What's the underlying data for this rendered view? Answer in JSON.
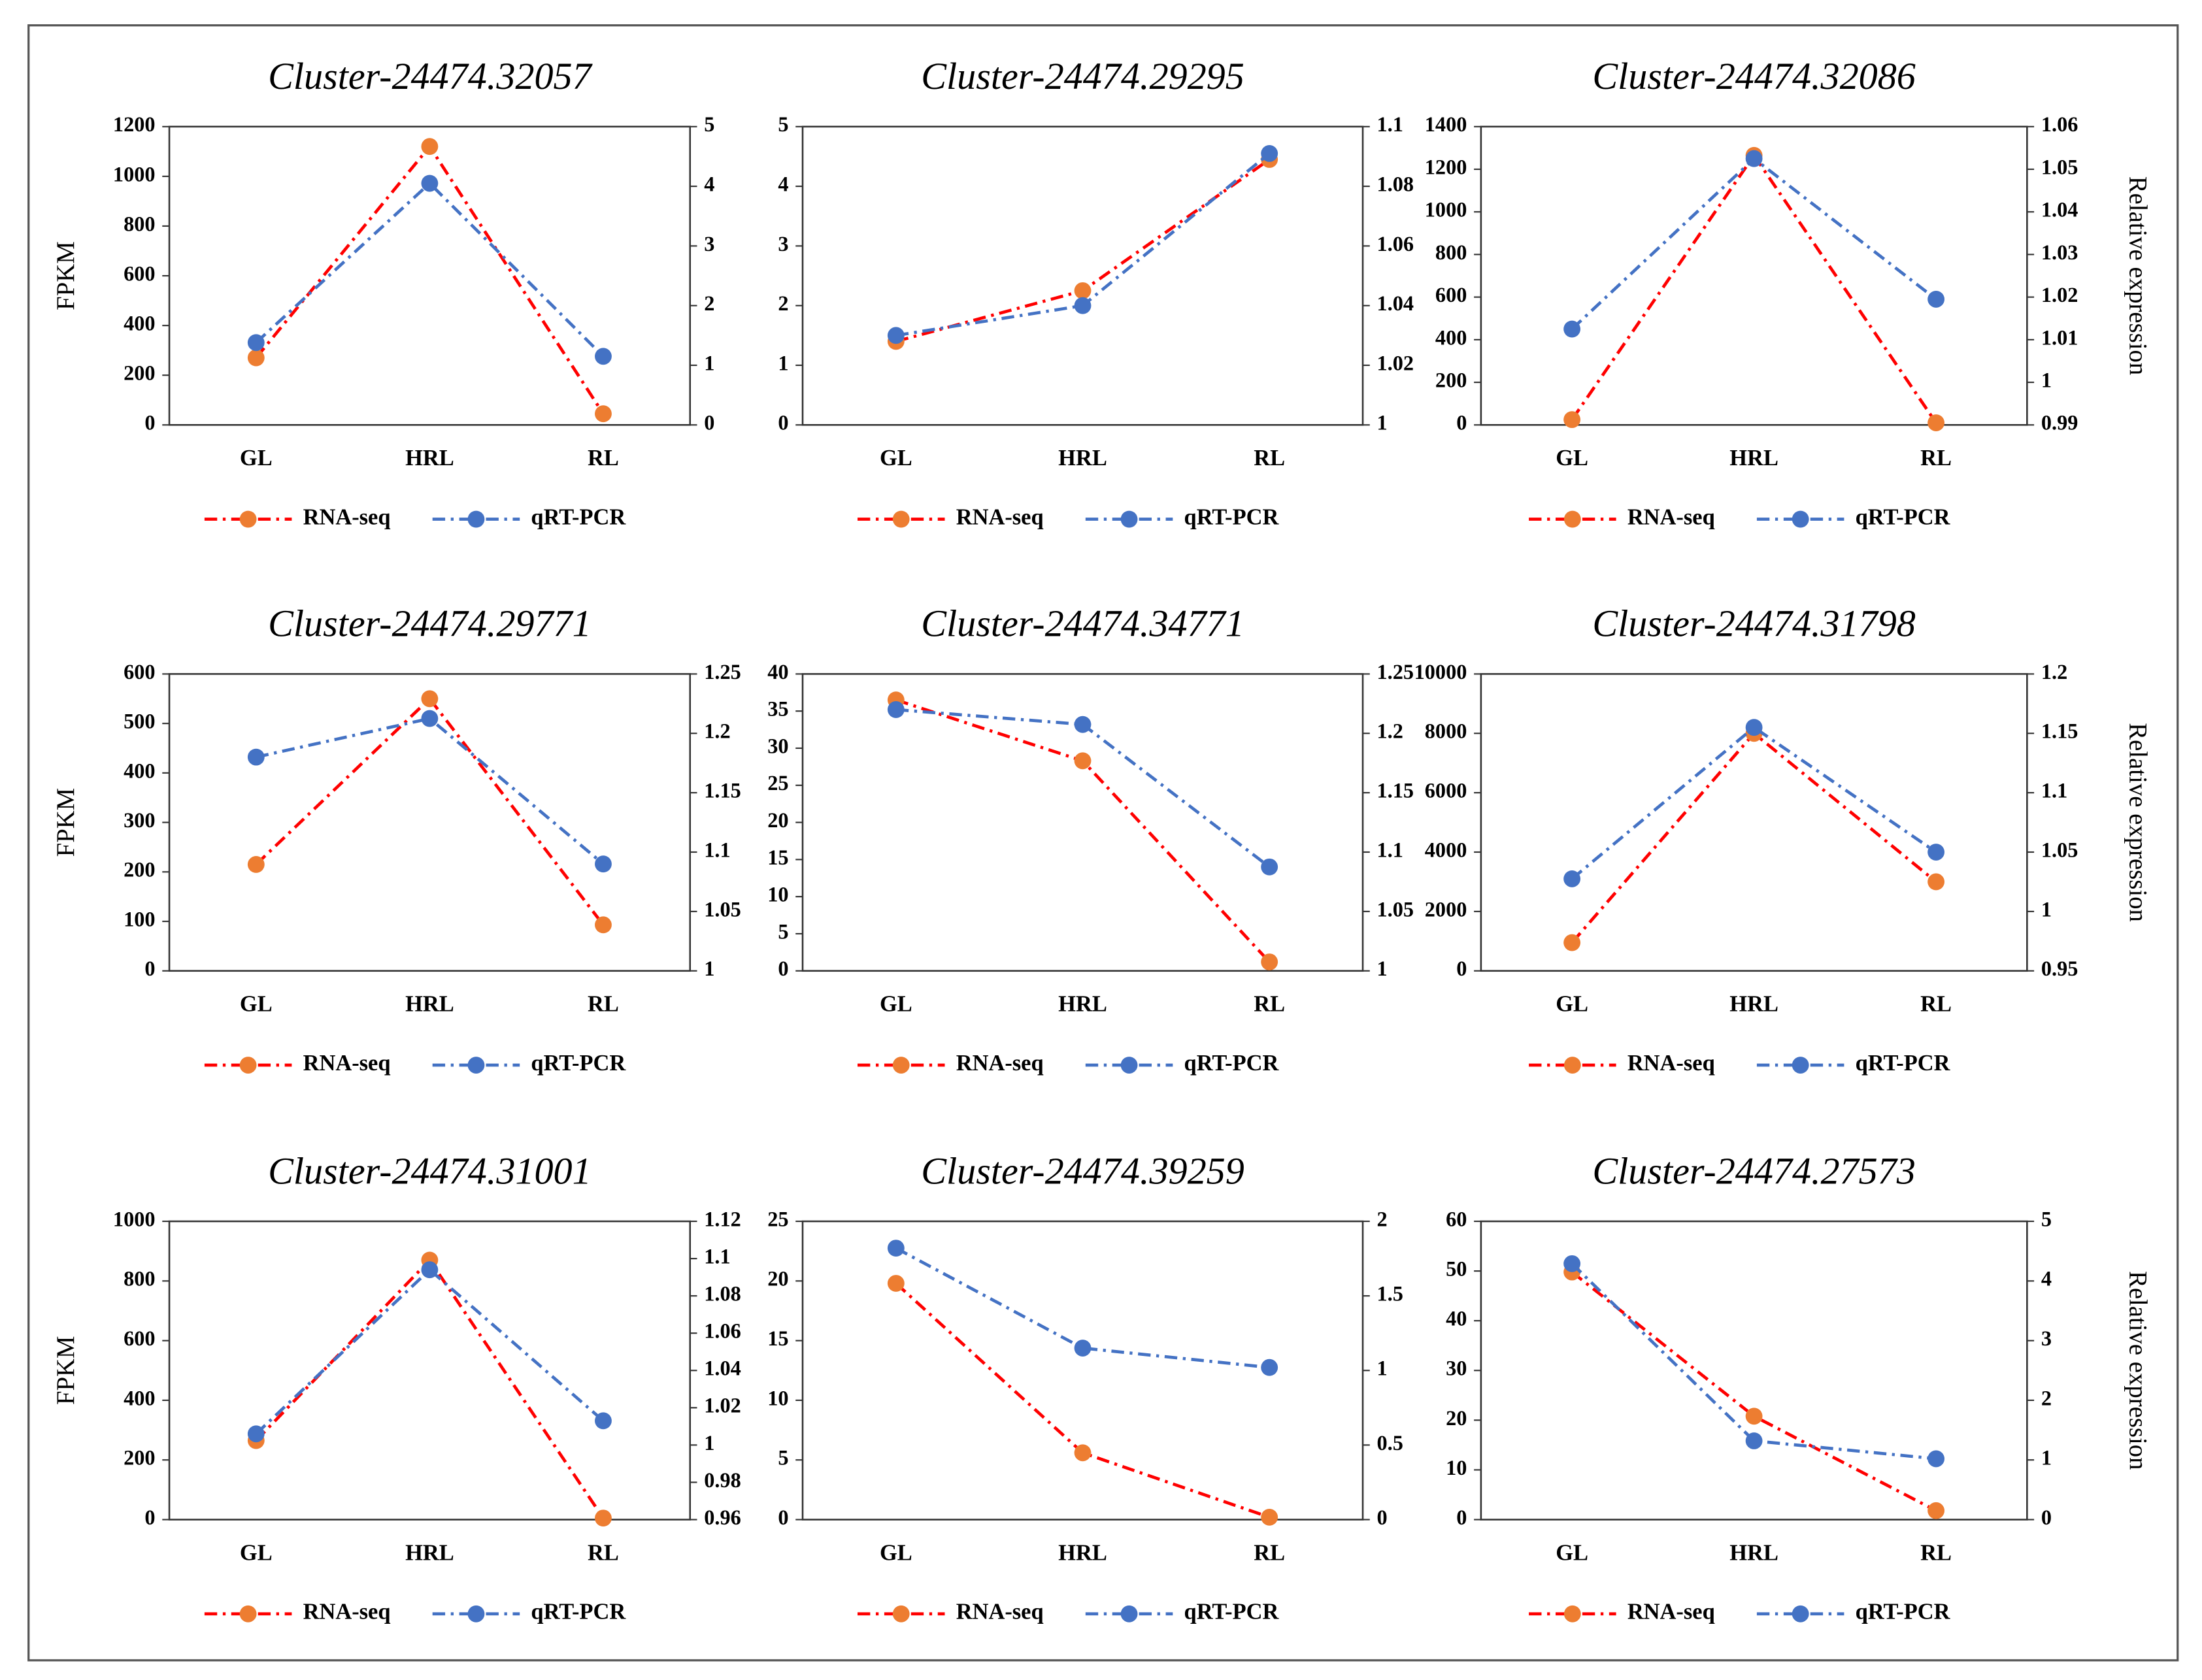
{
  "chart_data": [
    {
      "type": "line",
      "title": "Cluster-24474.32057",
      "categories": [
        "GL",
        "HRL",
        "RL"
      ],
      "ylabel": "FPKM",
      "series": [
        {
          "name": "RNA-seq",
          "color": "#ed7d31",
          "line_color": "#ff0000",
          "values": [
            270,
            1120,
            45
          ]
        },
        {
          "name": "qRT-PCR",
          "color": "#4472c4",
          "line_color": "#4472c4",
          "axis": "y2",
          "values": [
            1.38,
            4.05,
            1.15
          ]
        }
      ],
      "ylim": [
        0,
        1200
      ],
      "yticks": [
        0,
        200,
        400,
        600,
        800,
        1000,
        1200
      ],
      "y2lim": [
        0,
        5
      ],
      "y2ticks": [
        0,
        1,
        2,
        3,
        4,
        5
      ]
    },
    {
      "type": "line",
      "title": "Cluster-24474.29295",
      "categories": [
        "GL",
        "HRL",
        "RL"
      ],
      "series": [
        {
          "name": "RNA-seq",
          "color": "#ed7d31",
          "line_color": "#ff0000",
          "values": [
            1.4,
            2.25,
            4.45
          ]
        },
        {
          "name": "qRT-PCR",
          "color": "#4472c4",
          "line_color": "#4472c4",
          "axis": "y2",
          "values": [
            1.03,
            1.04,
            1.091
          ]
        }
      ],
      "ylim": [
        0,
        5
      ],
      "yticks": [
        0,
        1,
        2,
        3,
        4,
        5
      ],
      "y2lim": [
        1,
        1.1
      ],
      "y2ticks": [
        1,
        1.02,
        1.04,
        1.06,
        1.08,
        1.1
      ]
    },
    {
      "type": "line",
      "title": "Cluster-24474.32086",
      "categories": [
        "GL",
        "HRL",
        "RL"
      ],
      "y2label": "Relative expression",
      "series": [
        {
          "name": "RNA-seq",
          "color": "#ed7d31",
          "line_color": "#ff0000",
          "values": [
            25,
            1265,
            10
          ]
        },
        {
          "name": "qRT-PCR",
          "color": "#4472c4",
          "line_color": "#4472c4",
          "axis": "y2",
          "values": [
            1.0125,
            1.0525,
            1.0195
          ]
        }
      ],
      "ylim": [
        0,
        1400
      ],
      "yticks": [
        0,
        200,
        400,
        600,
        800,
        1000,
        1200,
        1400
      ],
      "y2lim": [
        0.99,
        1.06
      ],
      "y2ticks": [
        0.99,
        1,
        1.01,
        1.02,
        1.03,
        1.04,
        1.05,
        1.06
      ]
    },
    {
      "type": "line",
      "title": "Cluster-24474.29771",
      "categories": [
        "GL",
        "HRL",
        "RL"
      ],
      "ylabel": "FPKM",
      "series": [
        {
          "name": "RNA-seq",
          "color": "#ed7d31",
          "line_color": "#ff0000",
          "values": [
            215,
            550,
            93
          ]
        },
        {
          "name": "qRT-PCR",
          "color": "#4472c4",
          "line_color": "#4472c4",
          "axis": "y2",
          "values": [
            1.18,
            1.2125,
            1.09
          ]
        }
      ],
      "ylim": [
        0,
        600
      ],
      "yticks": [
        0,
        100,
        200,
        300,
        400,
        500,
        600
      ],
      "y2lim": [
        1,
        1.25
      ],
      "y2ticks": [
        1,
        1.05,
        1.1,
        1.15,
        1.2,
        1.25
      ]
    },
    {
      "type": "line",
      "title": "Cluster-24474.34771",
      "categories": [
        "GL",
        "HRL",
        "RL"
      ],
      "series": [
        {
          "name": "RNA-seq",
          "color": "#ed7d31",
          "line_color": "#ff0000",
          "values": [
            36.5,
            28.3,
            1.2
          ]
        },
        {
          "name": "qRT-PCR",
          "color": "#4472c4",
          "line_color": "#4472c4",
          "axis": "y2",
          "values": [
            1.22,
            1.2075,
            1.0875
          ]
        }
      ],
      "ylim": [
        0,
        40
      ],
      "yticks": [
        0,
        5,
        10,
        15,
        20,
        25,
        30,
        35,
        40
      ],
      "y2lim": [
        1,
        1.25
      ],
      "y2ticks": [
        1,
        1.05,
        1.1,
        1.15,
        1.2,
        1.25
      ]
    },
    {
      "type": "line",
      "title": "Cluster-24474.31798",
      "categories": [
        "GL",
        "HRL",
        "RL"
      ],
      "y2label": "Relative expression",
      "series": [
        {
          "name": "RNA-seq",
          "color": "#ed7d31",
          "line_color": "#ff0000",
          "values": [
            950,
            8000,
            3000
          ]
        },
        {
          "name": "qRT-PCR",
          "color": "#4472c4",
          "line_color": "#4472c4",
          "axis": "y2",
          "values": [
            1.0275,
            1.155,
            1.05
          ]
        }
      ],
      "ylim": [
        0,
        10000
      ],
      "yticks": [
        0,
        2000,
        4000,
        6000,
        8000,
        10000
      ],
      "y2lim": [
        0.95,
        1.2
      ],
      "y2ticks": [
        0.95,
        1,
        1.05,
        1.1,
        1.15,
        1.2
      ]
    },
    {
      "type": "line",
      "title": "Cluster-24474.31001",
      "categories": [
        "GL",
        "HRL",
        "RL"
      ],
      "ylabel": "FPKM",
      "series": [
        {
          "name": "RNA-seq",
          "color": "#ed7d31",
          "line_color": "#ff0000",
          "values": [
            265,
            870,
            5
          ]
        },
        {
          "name": "qRT-PCR",
          "color": "#4472c4",
          "line_color": "#4472c4",
          "axis": "y2",
          "values": [
            1.006,
            1.094,
            1.013
          ]
        }
      ],
      "ylim": [
        0,
        1000
      ],
      "yticks": [
        0,
        200,
        400,
        600,
        800,
        1000
      ],
      "y2lim": [
        0.96,
        1.12
      ],
      "y2ticks": [
        0.96,
        0.98,
        1,
        1.02,
        1.04,
        1.06,
        1.08,
        1.1,
        1.12
      ]
    },
    {
      "type": "line",
      "title": "Cluster-24474.39259",
      "categories": [
        "GL",
        "HRL",
        "RL"
      ],
      "series": [
        {
          "name": "RNA-seq",
          "color": "#ed7d31",
          "line_color": "#ff0000",
          "values": [
            19.8,
            5.6,
            0.2
          ]
        },
        {
          "name": "qRT-PCR",
          "color": "#4472c4",
          "line_color": "#4472c4",
          "axis": "y2",
          "values": [
            1.82,
            1.15,
            1.02
          ]
        }
      ],
      "ylim": [
        0,
        25
      ],
      "yticks": [
        0,
        5,
        10,
        15,
        20,
        25
      ],
      "y2lim": [
        0,
        2
      ],
      "y2ticks": [
        0,
        0.5,
        1,
        1.5,
        2
      ]
    },
    {
      "type": "line",
      "title": "Cluster-24474.27573",
      "categories": [
        "GL",
        "HRL",
        "RL"
      ],
      "y2label": "Relative expression",
      "series": [
        {
          "name": "RNA-seq",
          "color": "#ed7d31",
          "line_color": "#ff0000",
          "values": [
            49.8,
            20.8,
            1.8
          ]
        },
        {
          "name": "qRT-PCR",
          "color": "#4472c4",
          "line_color": "#4472c4",
          "axis": "y2",
          "values": [
            4.29,
            1.32,
            1.02
          ]
        }
      ],
      "ylim": [
        0,
        60
      ],
      "yticks": [
        0,
        10,
        20,
        30,
        40,
        50,
        60
      ],
      "y2lim": [
        0,
        5
      ],
      "y2ticks": [
        0,
        1,
        2,
        3,
        4,
        5
      ]
    }
  ]
}
